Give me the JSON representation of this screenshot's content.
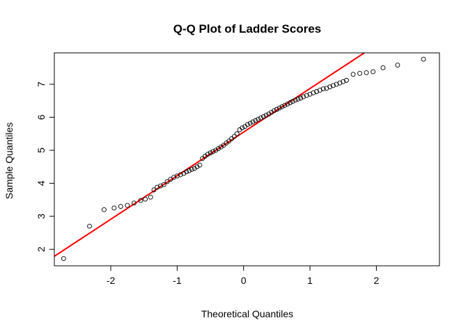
{
  "chart_data": {
    "type": "scatter",
    "title": "Q-Q Plot of Ladder Scores",
    "xlabel": "Theoretical Quantiles",
    "ylabel": "Sample Quantiles",
    "xlim": [
      -2.85,
      2.95
    ],
    "ylim": [
      1.5,
      7.95
    ],
    "xticks": [
      -2,
      -1,
      0,
      1,
      2
    ],
    "xtick_labels": [
      "-2",
      "-1",
      "0",
      "1",
      "2"
    ],
    "yticks": [
      2,
      3,
      4,
      5,
      6,
      7
    ],
    "ytick_labels": [
      "2",
      "3",
      "4",
      "5",
      "6",
      "7"
    ],
    "grid": false,
    "point_color": "#000000",
    "line_color": "#ff0000",
    "reference_line": {
      "intercept": 5.55,
      "slope": 1.32
    },
    "points": [
      {
        "x": -2.71,
        "y": 1.72
      },
      {
        "x": -2.32,
        "y": 2.7
      },
      {
        "x": -2.1,
        "y": 3.2
      },
      {
        "x": -1.95,
        "y": 3.25
      },
      {
        "x": -1.85,
        "y": 3.3
      },
      {
        "x": -1.75,
        "y": 3.33
      },
      {
        "x": -1.65,
        "y": 3.4
      },
      {
        "x": -1.55,
        "y": 3.48
      },
      {
        "x": -1.48,
        "y": 3.52
      },
      {
        "x": -1.4,
        "y": 3.58
      },
      {
        "x": -1.35,
        "y": 3.8
      },
      {
        "x": -1.3,
        "y": 3.88
      },
      {
        "x": -1.25,
        "y": 3.92
      },
      {
        "x": -1.2,
        "y": 3.96
      },
      {
        "x": -1.15,
        "y": 4.05
      },
      {
        "x": -1.1,
        "y": 4.12
      },
      {
        "x": -1.05,
        "y": 4.18
      },
      {
        "x": -1.0,
        "y": 4.22
      },
      {
        "x": -0.95,
        "y": 4.26
      },
      {
        "x": -0.9,
        "y": 4.3
      },
      {
        "x": -0.86,
        "y": 4.35
      },
      {
        "x": -0.82,
        "y": 4.38
      },
      {
        "x": -0.78,
        "y": 4.42
      },
      {
        "x": -0.74,
        "y": 4.45
      },
      {
        "x": -0.7,
        "y": 4.5
      },
      {
        "x": -0.66,
        "y": 4.55
      },
      {
        "x": -0.62,
        "y": 4.75
      },
      {
        "x": -0.58,
        "y": 4.82
      },
      {
        "x": -0.54,
        "y": 4.88
      },
      {
        "x": -0.5,
        "y": 4.92
      },
      {
        "x": -0.46,
        "y": 4.96
      },
      {
        "x": -0.42,
        "y": 5.0
      },
      {
        "x": -0.38,
        "y": 5.05
      },
      {
        "x": -0.34,
        "y": 5.1
      },
      {
        "x": -0.3,
        "y": 5.15
      },
      {
        "x": -0.26,
        "y": 5.22
      },
      {
        "x": -0.22,
        "y": 5.28
      },
      {
        "x": -0.18,
        "y": 5.35
      },
      {
        "x": -0.14,
        "y": 5.42
      },
      {
        "x": -0.1,
        "y": 5.5
      },
      {
        "x": -0.06,
        "y": 5.62
      },
      {
        "x": -0.02,
        "y": 5.68
      },
      {
        "x": 0.02,
        "y": 5.72
      },
      {
        "x": 0.06,
        "y": 5.78
      },
      {
        "x": 0.1,
        "y": 5.82
      },
      {
        "x": 0.14,
        "y": 5.86
      },
      {
        "x": 0.18,
        "y": 5.9
      },
      {
        "x": 0.22,
        "y": 5.94
      },
      {
        "x": 0.26,
        "y": 5.98
      },
      {
        "x": 0.3,
        "y": 6.02
      },
      {
        "x": 0.34,
        "y": 6.06
      },
      {
        "x": 0.38,
        "y": 6.1
      },
      {
        "x": 0.42,
        "y": 6.15
      },
      {
        "x": 0.46,
        "y": 6.2
      },
      {
        "x": 0.5,
        "y": 6.24
      },
      {
        "x": 0.54,
        "y": 6.28
      },
      {
        "x": 0.58,
        "y": 6.32
      },
      {
        "x": 0.62,
        "y": 6.36
      },
      {
        "x": 0.66,
        "y": 6.4
      },
      {
        "x": 0.7,
        "y": 6.44
      },
      {
        "x": 0.74,
        "y": 6.48
      },
      {
        "x": 0.78,
        "y": 6.52
      },
      {
        "x": 0.82,
        "y": 6.55
      },
      {
        "x": 0.86,
        "y": 6.58
      },
      {
        "x": 0.9,
        "y": 6.62
      },
      {
        "x": 0.95,
        "y": 6.66
      },
      {
        "x": 1.0,
        "y": 6.7
      },
      {
        "x": 1.05,
        "y": 6.74
      },
      {
        "x": 1.1,
        "y": 6.78
      },
      {
        "x": 1.15,
        "y": 6.82
      },
      {
        "x": 1.2,
        "y": 6.86
      },
      {
        "x": 1.25,
        "y": 6.88
      },
      {
        "x": 1.3,
        "y": 6.92
      },
      {
        "x": 1.35,
        "y": 6.96
      },
      {
        "x": 1.4,
        "y": 7.0
      },
      {
        "x": 1.45,
        "y": 7.04
      },
      {
        "x": 1.5,
        "y": 7.08
      },
      {
        "x": 1.55,
        "y": 7.12
      },
      {
        "x": 1.65,
        "y": 7.3
      },
      {
        "x": 1.75,
        "y": 7.33
      },
      {
        "x": 1.85,
        "y": 7.35
      },
      {
        "x": 1.95,
        "y": 7.38
      },
      {
        "x": 2.1,
        "y": 7.5
      },
      {
        "x": 2.32,
        "y": 7.58
      },
      {
        "x": 2.71,
        "y": 7.76
      }
    ]
  }
}
